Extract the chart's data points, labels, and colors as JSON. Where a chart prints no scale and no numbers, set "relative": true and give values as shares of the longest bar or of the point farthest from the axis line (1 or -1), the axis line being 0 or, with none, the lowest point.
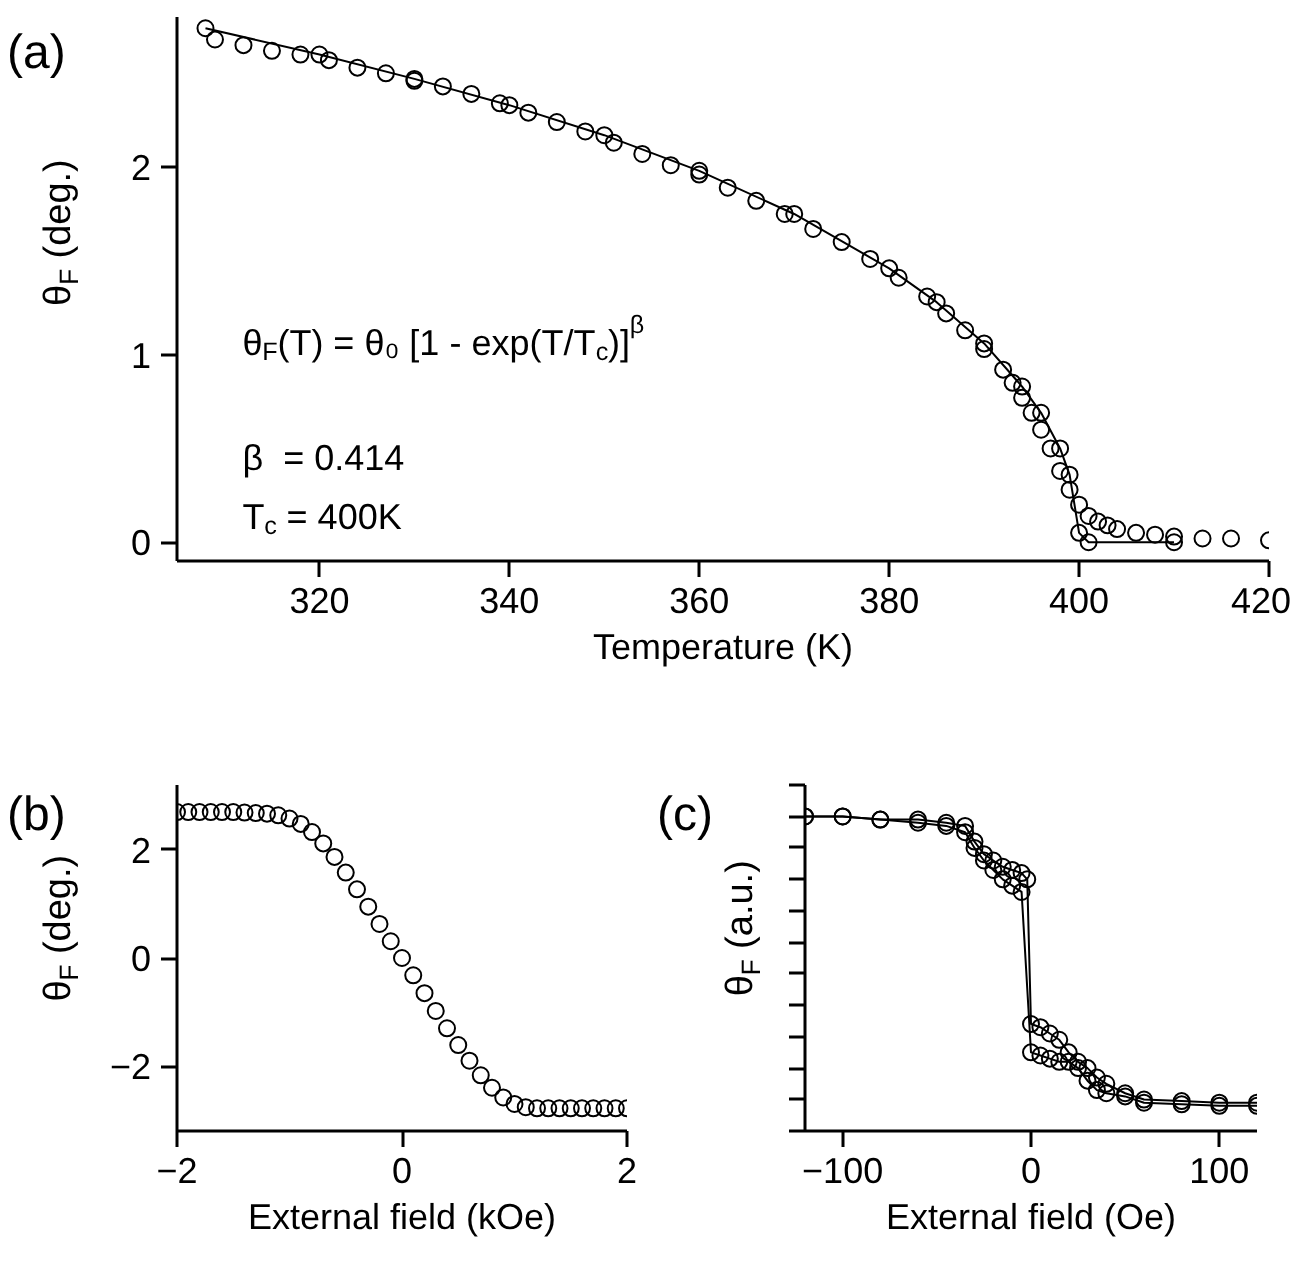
{
  "chart_data": [
    {
      "type": "scatter",
      "xlabel": "Temperature (K)",
      "ylabel": "θ$_{F}$ (deg.)",
      "xlim": [
        305,
        420
      ],
      "ylim": [
        -0.1,
        2.8
      ],
      "xticks": [
        320,
        340,
        360,
        380,
        400,
        420
      ],
      "yticks": [
        0,
        1,
        2
      ],
      "marker": "circle",
      "grid": false,
      "annotations": [
        "(a)",
        "θ$_{F}$(T) = θ₀ [1 - exp(T/T$_{c}$)]$^{β}$",
        "β  = 0.414",
        "T$_{c}$ = 400K"
      ],
      "series": [
        {
          "color": "#000000",
          "x": [
            309,
            312,
            315,
            318,
            321,
            324,
            327,
            330,
            333,
            336,
            339,
            342,
            345,
            348,
            351,
            354,
            357,
            360,
            363,
            366,
            369,
            372,
            375,
            378,
            381,
            384,
            386,
            388,
            390,
            392,
            393,
            394,
            395,
            396,
            397,
            398,
            399,
            400,
            401,
            402,
            403,
            404,
            406,
            408,
            410,
            413,
            416,
            420
          ],
          "values": [
            2.68,
            2.65,
            2.62,
            2.6,
            2.57,
            2.53,
            2.5,
            2.46,
            2.43,
            2.39,
            2.34,
            2.29,
            2.24,
            2.19,
            2.13,
            2.07,
            2.01,
            1.96,
            1.89,
            1.82,
            1.75,
            1.67,
            1.6,
            1.51,
            1.41,
            1.31,
            1.22,
            1.13,
            1.03,
            0.92,
            0.85,
            0.77,
            0.69,
            0.6,
            0.5,
            0.38,
            0.28,
            0.2,
            0.14,
            0.11,
            0.09,
            0.07,
            0.05,
            0.04,
            0.03,
            0.02,
            0.02,
            0.01
          ]
        },
        {
          "type": "line",
          "color": "#000000",
          "x": [
            308,
            320,
            330,
            340,
            350,
            360,
            370,
            380,
            385,
            390,
            394,
            396,
            398,
            399,
            400,
            401,
            410
          ],
          "values": [
            2.74,
            2.6,
            2.47,
            2.33,
            2.17,
            1.98,
            1.75,
            1.46,
            1.28,
            1.06,
            0.83,
            0.69,
            0.5,
            0.36,
            0.05,
            0.0,
            0.0
          ]
        }
      ]
    },
    {
      "type": "scatter",
      "xlabel": "External field (kOe)",
      "ylabel": "θ$_{F}$ (deg.)",
      "xlim": [
        -2,
        2
      ],
      "ylim": [
        -3.2,
        3.2
      ],
      "xticks": [
        -2,
        0,
        2
      ],
      "yticks": [
        -2,
        0,
        2
      ],
      "marker": "circle",
      "grid": false,
      "annotations": [
        "(b)"
      ],
      "series": [
        {
          "color": "#000000",
          "x": [
            -2.0,
            -1.9,
            -1.8,
            -1.7,
            -1.6,
            -1.5,
            -1.4,
            -1.3,
            -1.2,
            -1.1,
            -1.0,
            -0.9,
            -0.8,
            -0.7,
            -0.6,
            -0.5,
            -0.4,
            -0.3,
            -0.2,
            -0.1,
            0.0,
            0.1,
            0.2,
            0.3,
            0.4,
            0.5,
            0.6,
            0.7,
            0.8,
            0.9,
            1.0,
            1.1,
            1.2,
            1.3,
            1.4,
            1.5,
            1.6,
            1.7,
            1.8,
            1.9,
            2.0
          ],
          "values": [
            2.7,
            2.7,
            2.7,
            2.7,
            2.7,
            2.7,
            2.69,
            2.68,
            2.67,
            2.64,
            2.58,
            2.48,
            2.33,
            2.12,
            1.87,
            1.58,
            1.27,
            0.95,
            0.63,
            0.31,
            0.0,
            -0.32,
            -0.65,
            -0.98,
            -1.3,
            -1.61,
            -1.9,
            -2.17,
            -2.4,
            -2.58,
            -2.7,
            -2.76,
            -2.78,
            -2.78,
            -2.78,
            -2.78,
            -2.78,
            -2.78,
            -2.78,
            -2.78,
            -2.78
          ]
        }
      ]
    },
    {
      "type": "line",
      "xlabel": "External field (Oe)",
      "ylabel": "θ$_{F}$ (a.u.)",
      "xlim": [
        -120,
        120
      ],
      "xticks": [
        -100,
        0,
        100
      ],
      "relative": true,
      "tick_labels": "x",
      "marker": "circle",
      "grid": false,
      "annotations": [
        "(c)"
      ],
      "series": [
        {
          "color": "#000000",
          "x": [
            -120,
            -100,
            -80,
            -60,
            -45,
            -35,
            -30,
            -25,
            -20,
            -15,
            -10,
            -5,
            -2,
            0,
            5,
            10,
            15,
            20,
            25,
            30,
            35,
            40,
            50,
            60,
            80,
            100,
            120
          ],
          "values": [
            1.0,
            1.0,
            0.99,
            0.99,
            0.98,
            0.97,
            0.92,
            0.88,
            0.86,
            0.84,
            0.83,
            0.82,
            0.8,
            0.34,
            0.33,
            0.31,
            0.29,
            0.25,
            0.22,
            0.2,
            0.17,
            0.15,
            0.12,
            0.1,
            0.095,
            0.09,
            0.09
          ]
        },
        {
          "color": "#000000",
          "x": [
            120,
            100,
            80,
            60,
            50,
            40,
            35,
            30,
            25,
            20,
            15,
            10,
            5,
            0,
            -5,
            -10,
            -15,
            -20,
            -25,
            -30,
            -35,
            -45,
            -60,
            -80,
            -100,
            -120
          ],
          "values": [
            0.08,
            0.08,
            0.085,
            0.09,
            0.11,
            0.12,
            0.13,
            0.16,
            0.2,
            0.22,
            0.22,
            0.23,
            0.24,
            0.25,
            0.76,
            0.78,
            0.8,
            0.83,
            0.86,
            0.9,
            0.95,
            0.97,
            0.98,
            0.99,
            1.0,
            1.0
          ]
        }
      ]
    }
  ]
}
